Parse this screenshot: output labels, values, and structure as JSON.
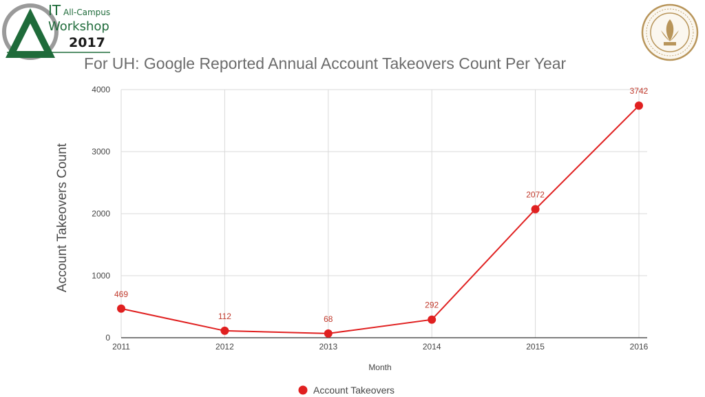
{
  "header": {
    "logo_it": "IT",
    "logo_line1": "All-Campus",
    "logo_line2": "Workshop",
    "logo_year": "2017",
    "seal_name": "university-of-hawaii-seal"
  },
  "colors": {
    "series": "#e02020",
    "label": "#c0392b",
    "logo_green": "#1f6b3a",
    "seal_gold": "#b8955a",
    "grid": "#d9d9d9"
  },
  "chart_data": {
    "type": "line",
    "title": "For UH: Google Reported Annual Account Takeovers Count Per Year",
    "xlabel": "Month",
    "ylabel": "Account Takeovers Count",
    "categories": [
      "2011",
      "2012",
      "2013",
      "2014",
      "2015",
      "2016"
    ],
    "yticks": [
      "0",
      "1000",
      "2000",
      "3000",
      "4000"
    ],
    "ylim": [
      0,
      4000
    ],
    "grid": true,
    "legend_position": "bottom",
    "series": [
      {
        "name": "Account Takeovers",
        "values": [
          469,
          112,
          68,
          292,
          2072,
          3742
        ],
        "labels": [
          "469",
          "112",
          "68",
          "292",
          "2072",
          "3742"
        ]
      }
    ]
  }
}
